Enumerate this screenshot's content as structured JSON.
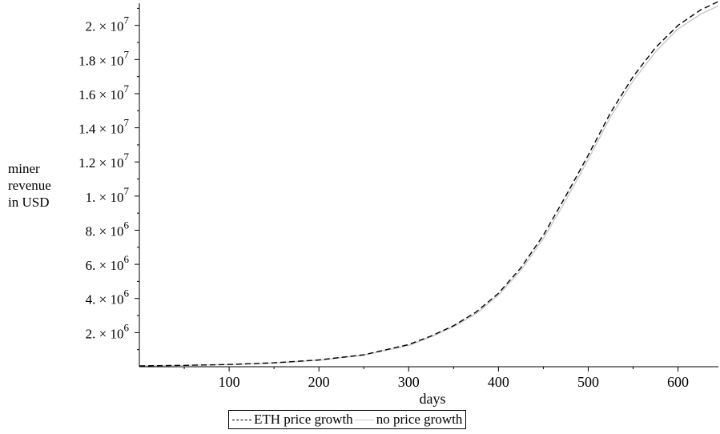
{
  "chart_data": {
    "type": "line",
    "xlabel": "days",
    "ylabel_lines": [
      "miner",
      "revenue",
      "in USD"
    ],
    "xlim": [
      0,
      645
    ],
    "ylim": [
      0,
      21300000
    ],
    "x_ticks": [
      100,
      200,
      300,
      400,
      500,
      600
    ],
    "y_ticks": [
      {
        "value": 2000000,
        "mant": "2. ×",
        "exp": "6"
      },
      {
        "value": 4000000,
        "mant": "4. ×",
        "exp": "6"
      },
      {
        "value": 6000000,
        "mant": "6. ×",
        "exp": "6"
      },
      {
        "value": 8000000,
        "mant": "8. ×",
        "exp": "6"
      },
      {
        "value": 10000000,
        "mant": "1. ×",
        "exp": "7"
      },
      {
        "value": 12000000,
        "mant": "1.2 ×",
        "exp": "7"
      },
      {
        "value": 14000000,
        "mant": "1.4 ×",
        "exp": "7"
      },
      {
        "value": 16000000,
        "mant": "1.6 ×",
        "exp": "7"
      },
      {
        "value": 18000000,
        "mant": "1.8 ×",
        "exp": "7"
      },
      {
        "value": 20000000,
        "mant": "2. ×",
        "exp": "7"
      }
    ],
    "grid": false,
    "legend_position": "bottom-center",
    "series": [
      {
        "name": "ETH price growth",
        "style": "dashed",
        "color": "#000000",
        "x": [
          0,
          50,
          100,
          150,
          200,
          250,
          300,
          325,
          350,
          375,
          400,
          425,
          450,
          475,
          500,
          525,
          550,
          575,
          600,
          625,
          645
        ],
        "y": [
          50000,
          80000,
          130000,
          230000,
          400000,
          700000,
          1300000,
          1800000,
          2400000,
          3200000,
          4300000,
          5800000,
          7700000,
          10000000,
          12400000,
          14900000,
          17000000,
          18700000,
          20000000,
          20900000,
          21400000
        ]
      },
      {
        "name": "no price growth",
        "style": "solid",
        "color": "#c8c8c8",
        "x": [
          0,
          50,
          100,
          150,
          200,
          250,
          300,
          325,
          350,
          375,
          400,
          425,
          450,
          475,
          500,
          525,
          550,
          575,
          600,
          625,
          645
        ],
        "y": [
          50000,
          80000,
          130000,
          220000,
          380000,
          680000,
          1250000,
          1750000,
          2350000,
          3100000,
          4200000,
          5650000,
          7500000,
          9750000,
          12150000,
          14650000,
          16750000,
          18450000,
          19800000,
          20650000,
          21150000
        ]
      }
    ]
  }
}
